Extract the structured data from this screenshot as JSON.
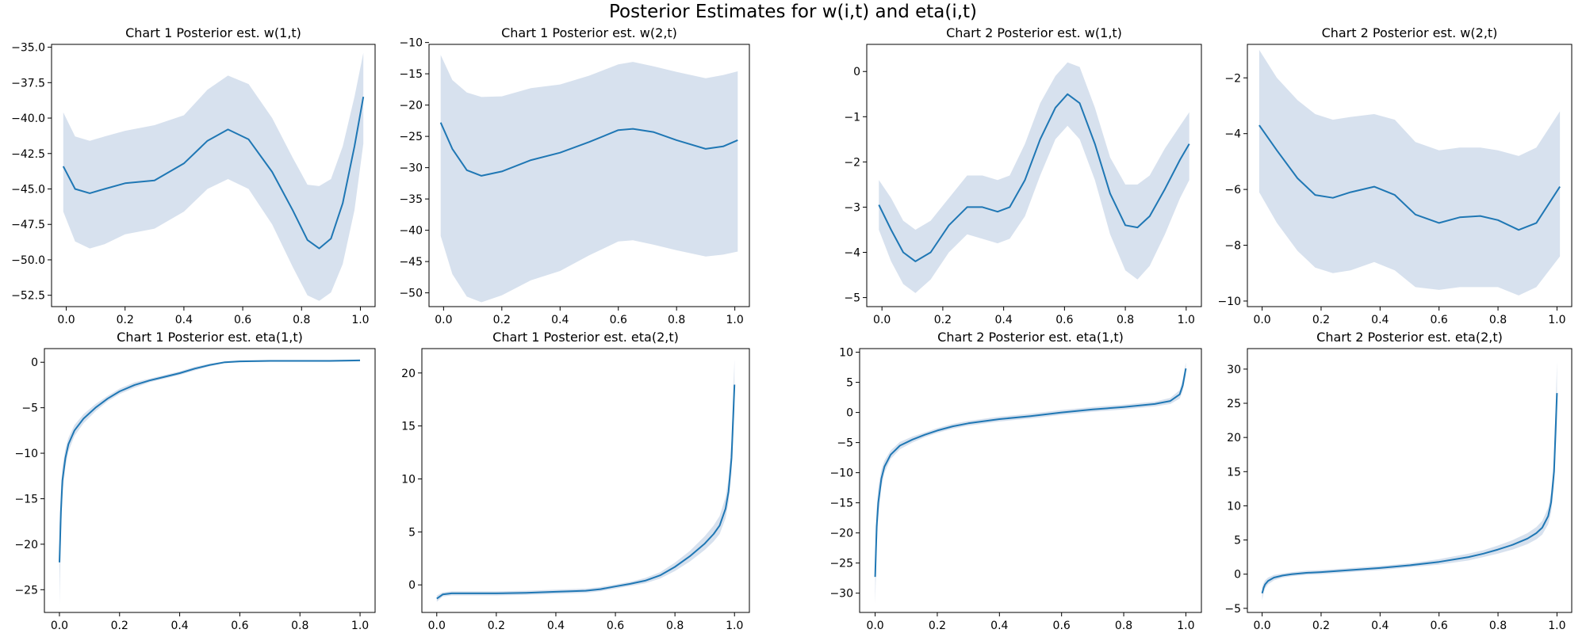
{
  "figure": {
    "suptitle": "Posterior Estimates for w(i,t) and eta(i,t)",
    "line_color": "#1f77b4",
    "band_color": "#b0c4de"
  },
  "chart_data": [
    {
      "type": "line",
      "title": "Chart 1 Posterior est. w(1,t)",
      "xlim": [
        -0.05,
        1.05
      ],
      "ylim": [
        -53.3,
        -34.8
      ],
      "xticks": [
        0,
        0.2,
        0.4,
        0.6,
        0.8,
        1
      ],
      "xtick_labels": [
        "0.0",
        "0.2",
        "0.4",
        "0.6",
        "0.8",
        "1.0"
      ],
      "yticks": [
        -52.5,
        -50,
        -47.5,
        -45,
        -42.5,
        -40,
        -37.5,
        -35
      ],
      "ytick_labels": [
        "−52.5",
        "−50.0",
        "−47.5",
        "−45.0",
        "−42.5",
        "−40.0",
        "−37.5",
        "−35.0"
      ],
      "x": [
        -0.01,
        0.03,
        0.08,
        0.13,
        0.2,
        0.3,
        0.4,
        0.48,
        0.55,
        0.62,
        0.7,
        0.77,
        0.82,
        0.86,
        0.9,
        0.94,
        0.98,
        1.01
      ],
      "mean": [
        -43.4,
        -45.0,
        -45.3,
        -45.0,
        -44.6,
        -44.4,
        -43.2,
        -41.6,
        -40.8,
        -41.5,
        -43.8,
        -46.5,
        -48.6,
        -49.2,
        -48.5,
        -46.0,
        -42.0,
        -38.5
      ],
      "lower": [
        -46.6,
        -48.7,
        -49.2,
        -48.9,
        -48.2,
        -47.8,
        -46.6,
        -45.0,
        -44.3,
        -45.0,
        -47.5,
        -50.5,
        -52.5,
        -52.9,
        -52.3,
        -50.3,
        -46.5,
        -41.8
      ],
      "upper": [
        -39.6,
        -41.3,
        -41.6,
        -41.3,
        -40.9,
        -40.5,
        -39.8,
        -38.0,
        -37.0,
        -37.6,
        -40.0,
        -42.8,
        -44.7,
        -44.8,
        -44.3,
        -42.0,
        -38.5,
        -35.4
      ]
    },
    {
      "type": "line",
      "title": "Chart 1 Posterior est. w(2,t)",
      "xlim": [
        -0.05,
        1.05
      ],
      "ylim": [
        -52.2,
        -10.3
      ],
      "xticks": [
        0,
        0.2,
        0.4,
        0.6,
        0.8,
        1
      ],
      "xtick_labels": [
        "0.0",
        "0.2",
        "0.4",
        "0.6",
        "0.8",
        "1.0"
      ],
      "yticks": [
        -50,
        -45,
        -40,
        -35,
        -30,
        -25,
        -20,
        -15,
        -10
      ],
      "ytick_labels": [
        "−50",
        "−45",
        "−40",
        "−35",
        "−30",
        "−25",
        "−20",
        "−15",
        "−10"
      ],
      "x": [
        -0.01,
        0.03,
        0.08,
        0.13,
        0.2,
        0.3,
        0.4,
        0.5,
        0.6,
        0.65,
        0.72,
        0.8,
        0.9,
        0.96,
        1.01
      ],
      "mean": [
        -22.8,
        -27.0,
        -30.4,
        -31.3,
        -30.6,
        -28.8,
        -27.6,
        -25.9,
        -24.0,
        -23.8,
        -24.3,
        -25.6,
        -27.0,
        -26.6,
        -25.6
      ],
      "lower": [
        -40.9,
        -47.0,
        -50.6,
        -51.5,
        -50.4,
        -48.0,
        -46.5,
        -44.0,
        -41.8,
        -41.6,
        -42.3,
        -43.2,
        -44.2,
        -43.9,
        -43.4
      ],
      "upper": [
        -12.0,
        -16.0,
        -18.0,
        -18.7,
        -18.6,
        -17.3,
        -16.7,
        -15.3,
        -13.5,
        -13.1,
        -13.8,
        -14.7,
        -15.7,
        -15.2,
        -14.6
      ]
    },
    {
      "type": "line",
      "title": "Chart 2 Posterior est. w(1,t)",
      "xlim": [
        -0.05,
        1.05
      ],
      "ylim": [
        -5.2,
        0.6
      ],
      "xticks": [
        0,
        0.2,
        0.4,
        0.6,
        0.8,
        1
      ],
      "xtick_labels": [
        "0.0",
        "0.2",
        "0.4",
        "0.6",
        "0.8",
        "1.0"
      ],
      "yticks": [
        -5,
        -4,
        -3,
        -2,
        -1,
        0
      ],
      "ytick_labels": [
        "−5",
        "−4",
        "−3",
        "−2",
        "−1",
        "0"
      ],
      "x": [
        -0.01,
        0.03,
        0.07,
        0.11,
        0.16,
        0.22,
        0.28,
        0.33,
        0.38,
        0.42,
        0.47,
        0.52,
        0.57,
        0.61,
        0.65,
        0.7,
        0.75,
        0.8,
        0.84,
        0.88,
        0.93,
        0.98,
        1.01
      ],
      "mean": [
        -2.95,
        -3.5,
        -4.0,
        -4.2,
        -4.0,
        -3.4,
        -3.0,
        -3.0,
        -3.1,
        -3.0,
        -2.4,
        -1.5,
        -0.8,
        -0.5,
        -0.7,
        -1.6,
        -2.7,
        -3.4,
        -3.45,
        -3.2,
        -2.6,
        -1.95,
        -1.6
      ],
      "lower": [
        -3.5,
        -4.2,
        -4.7,
        -4.9,
        -4.6,
        -4.0,
        -3.6,
        -3.7,
        -3.8,
        -3.7,
        -3.2,
        -2.3,
        -1.5,
        -1.2,
        -1.5,
        -2.4,
        -3.6,
        -4.4,
        -4.6,
        -4.3,
        -3.6,
        -2.8,
        -2.4
      ],
      "upper": [
        -2.4,
        -2.8,
        -3.3,
        -3.5,
        -3.3,
        -2.8,
        -2.3,
        -2.3,
        -2.4,
        -2.3,
        -1.6,
        -0.7,
        -0.1,
        0.2,
        0.1,
        -0.8,
        -1.9,
        -2.5,
        -2.5,
        -2.3,
        -1.7,
        -1.2,
        -0.9
      ]
    },
    {
      "type": "line",
      "title": "Chart 2 Posterior est. w(2,t)",
      "xlim": [
        -0.05,
        1.05
      ],
      "ylim": [
        -10.2,
        -0.8
      ],
      "xticks": [
        0,
        0.2,
        0.4,
        0.6,
        0.8,
        1
      ],
      "xtick_labels": [
        "0.0",
        "0.2",
        "0.4",
        "0.6",
        "0.8",
        "1.0"
      ],
      "yticks": [
        -10,
        -8,
        -6,
        -4,
        -2
      ],
      "ytick_labels": [
        "−10",
        "−8",
        "−6",
        "−4",
        "−2"
      ],
      "x": [
        -0.01,
        0.05,
        0.12,
        0.18,
        0.24,
        0.3,
        0.38,
        0.45,
        0.52,
        0.6,
        0.67,
        0.74,
        0.8,
        0.87,
        0.93,
        1.01
      ],
      "mean": [
        -3.7,
        -4.6,
        -5.6,
        -6.2,
        -6.3,
        -6.1,
        -5.9,
        -6.2,
        -6.9,
        -7.2,
        -7.0,
        -6.95,
        -7.1,
        -7.45,
        -7.2,
        -5.9
      ],
      "lower": [
        -6.1,
        -7.2,
        -8.2,
        -8.8,
        -9.0,
        -8.9,
        -8.6,
        -8.9,
        -9.5,
        -9.6,
        -9.5,
        -9.5,
        -9.5,
        -9.8,
        -9.5,
        -8.4
      ],
      "upper": [
        -1.0,
        -2.0,
        -2.8,
        -3.3,
        -3.5,
        -3.4,
        -3.3,
        -3.5,
        -4.3,
        -4.6,
        -4.5,
        -4.5,
        -4.6,
        -4.8,
        -4.5,
        -3.2
      ]
    },
    {
      "type": "line",
      "title": "Chart 1 Posterior est. eta(1,t)",
      "xlim": [
        -0.05,
        1.05
      ],
      "ylim": [
        -27.5,
        1.5
      ],
      "xticks": [
        0,
        0.2,
        0.4,
        0.6,
        0.8,
        1
      ],
      "xtick_labels": [
        "0.0",
        "0.2",
        "0.4",
        "0.6",
        "0.8",
        "1.0"
      ],
      "yticks": [
        -25,
        -20,
        -15,
        -10,
        -5,
        0
      ],
      "ytick_labels": [
        "−25",
        "−20",
        "−15",
        "−10",
        "−5",
        "0"
      ],
      "x": [
        0.0,
        0.005,
        0.01,
        0.02,
        0.03,
        0.05,
        0.08,
        0.12,
        0.16,
        0.2,
        0.25,
        0.3,
        0.35,
        0.4,
        0.45,
        0.5,
        0.55,
        0.6,
        0.7,
        0.8,
        0.9,
        1.0
      ],
      "mean": [
        -22.0,
        -16.5,
        -13.0,
        -10.5,
        -9.0,
        -7.5,
        -6.2,
        -5.0,
        -4.0,
        -3.2,
        -2.5,
        -2.0,
        -1.6,
        -1.2,
        -0.7,
        -0.3,
        0.0,
        0.1,
        0.15,
        0.15,
        0.15,
        0.2
      ],
      "lower": [
        -26.6,
        -19.0,
        -14.5,
        -11.5,
        -9.8,
        -8.1,
        -6.7,
        -5.4,
        -4.3,
        -3.5,
        -2.8,
        -2.2,
        -1.8,
        -1.4,
        -0.9,
        -0.45,
        -0.1,
        0.0,
        0.05,
        0.05,
        0.05,
        0.1
      ],
      "upper": [
        -18.0,
        -14.0,
        -11.5,
        -9.5,
        -8.3,
        -6.9,
        -5.7,
        -4.6,
        -3.7,
        -2.9,
        -2.2,
        -1.8,
        -1.4,
        -1.0,
        -0.5,
        -0.15,
        0.1,
        0.2,
        0.25,
        0.25,
        0.25,
        0.3
      ]
    },
    {
      "type": "line",
      "title": "Chart 1 Posterior est. eta(2,t)",
      "xlim": [
        -0.05,
        1.05
      ],
      "ylim": [
        -2.6,
        22.3
      ],
      "xticks": [
        0,
        0.2,
        0.4,
        0.6,
        0.8,
        1
      ],
      "xtick_labels": [
        "0.0",
        "0.2",
        "0.4",
        "0.6",
        "0.8",
        "1.0"
      ],
      "yticks": [
        0,
        5,
        10,
        15,
        20
      ],
      "ytick_labels": [
        "0",
        "5",
        "10",
        "15",
        "20"
      ],
      "x": [
        0.0,
        0.02,
        0.05,
        0.1,
        0.2,
        0.3,
        0.4,
        0.5,
        0.55,
        0.6,
        0.65,
        0.7,
        0.75,
        0.8,
        0.85,
        0.9,
        0.93,
        0.95,
        0.97,
        0.98,
        0.99,
        1.0
      ],
      "mean": [
        -1.3,
        -0.9,
        -0.8,
        -0.8,
        -0.8,
        -0.75,
        -0.65,
        -0.55,
        -0.4,
        -0.15,
        0.1,
        0.4,
        0.9,
        1.7,
        2.7,
        3.9,
        4.8,
        5.6,
        7.2,
        8.8,
        12.0,
        18.9
      ],
      "lower": [
        -1.6,
        -1.1,
        -1.0,
        -1.0,
        -1.0,
        -0.95,
        -0.85,
        -0.75,
        -0.6,
        -0.35,
        -0.1,
        0.15,
        0.6,
        1.3,
        2.2,
        3.3,
        4.1,
        4.8,
        6.3,
        7.8,
        10.5,
        16.5
      ],
      "upper": [
        -1.0,
        -0.7,
        -0.6,
        -0.6,
        -0.6,
        -0.55,
        -0.45,
        -0.35,
        -0.2,
        0.05,
        0.3,
        0.65,
        1.2,
        2.1,
        3.2,
        4.6,
        5.6,
        6.5,
        8.3,
        10.0,
        13.7,
        21.3
      ]
    },
    {
      "type": "line",
      "title": "Chart 2 Posterior est. eta(1,t)",
      "xlim": [
        -0.05,
        1.05
      ],
      "ylim": [
        -33.2,
        10.6
      ],
      "xticks": [
        0,
        0.2,
        0.4,
        0.6,
        0.8,
        1
      ],
      "xtick_labels": [
        "0.0",
        "0.2",
        "0.4",
        "0.6",
        "0.8",
        "1.0"
      ],
      "yticks": [
        -30,
        -25,
        -20,
        -15,
        -10,
        -5,
        0,
        5,
        10
      ],
      "ytick_labels": [
        "−30",
        "−25",
        "−20",
        "−15",
        "−10",
        "−5",
        "0",
        "5",
        "10"
      ],
      "x": [
        0.0,
        0.005,
        0.01,
        0.02,
        0.03,
        0.05,
        0.08,
        0.12,
        0.16,
        0.2,
        0.25,
        0.3,
        0.4,
        0.5,
        0.6,
        0.7,
        0.8,
        0.9,
        0.95,
        0.98,
        0.99,
        1.0
      ],
      "mean": [
        -27.3,
        -19.0,
        -15.0,
        -11.0,
        -9.0,
        -7.0,
        -5.5,
        -4.5,
        -3.7,
        -3.0,
        -2.3,
        -1.8,
        -1.1,
        -0.6,
        0.0,
        0.5,
        0.9,
        1.4,
        1.9,
        3.0,
        4.5,
        7.3
      ],
      "lower": [
        -31.7,
        -22.5,
        -17.5,
        -12.5,
        -10.0,
        -7.7,
        -6.1,
        -5.0,
        -4.1,
        -3.4,
        -2.7,
        -2.2,
        -1.5,
        -1.0,
        -0.4,
        0.1,
        0.5,
        1.0,
        1.4,
        2.3,
        3.6,
        6.3
      ],
      "upper": [
        -23.5,
        -16.0,
        -12.5,
        -9.5,
        -8.0,
        -6.3,
        -4.9,
        -4.0,
        -3.3,
        -2.6,
        -1.9,
        -1.4,
        -0.7,
        -0.2,
        0.4,
        0.9,
        1.3,
        1.8,
        2.4,
        3.7,
        5.5,
        8.3
      ]
    },
    {
      "type": "line",
      "title": "Chart 2 Posterior est. eta(2,t)",
      "xlim": [
        -0.05,
        1.05
      ],
      "ylim": [
        -5.6,
        33.0
      ],
      "xticks": [
        0,
        0.2,
        0.4,
        0.6,
        0.8,
        1
      ],
      "xtick_labels": [
        "0.0",
        "0.2",
        "0.4",
        "0.6",
        "0.8",
        "1.0"
      ],
      "yticks": [
        -5,
        0,
        5,
        10,
        15,
        20,
        25,
        30
      ],
      "ytick_labels": [
        "−5",
        "0",
        "5",
        "10",
        "15",
        "20",
        "25",
        "30"
      ],
      "x": [
        0.0,
        0.005,
        0.01,
        0.02,
        0.04,
        0.07,
        0.1,
        0.15,
        0.2,
        0.3,
        0.4,
        0.5,
        0.6,
        0.7,
        0.75,
        0.8,
        0.85,
        0.9,
        0.93,
        0.95,
        0.97,
        0.98,
        0.99,
        1.0
      ],
      "mean": [
        -2.8,
        -2.0,
        -1.5,
        -1.0,
        -0.5,
        -0.2,
        0.0,
        0.2,
        0.3,
        0.6,
        0.9,
        1.3,
        1.8,
        2.5,
        3.0,
        3.6,
        4.3,
        5.2,
        6.0,
        6.8,
        8.5,
        10.5,
        15.0,
        26.5
      ],
      "lower": [
        -3.8,
        -2.7,
        -2.1,
        -1.5,
        -0.9,
        -0.5,
        -0.3,
        -0.1,
        0.0,
        0.3,
        0.6,
        1.0,
        1.4,
        2.0,
        2.5,
        3.0,
        3.6,
        4.4,
        5.1,
        5.8,
        7.3,
        9.0,
        12.8,
        22.0
      ],
      "upper": [
        -1.9,
        -1.3,
        -0.9,
        -0.5,
        -0.1,
        0.1,
        0.3,
        0.5,
        0.6,
        0.9,
        1.2,
        1.6,
        2.2,
        3.0,
        3.5,
        4.2,
        5.0,
        6.0,
        6.9,
        7.8,
        9.7,
        12.0,
        17.2,
        31.0
      ]
    }
  ]
}
